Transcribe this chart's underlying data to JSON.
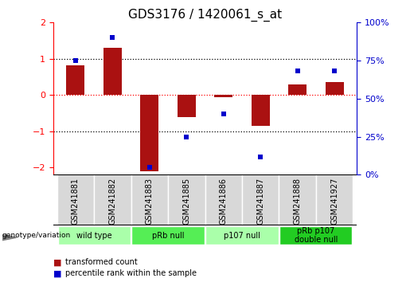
{
  "title": "GDS3176 / 1420061_s_at",
  "samples": [
    "GSM241881",
    "GSM241882",
    "GSM241883",
    "GSM241885",
    "GSM241886",
    "GSM241887",
    "GSM241888",
    "GSM241927"
  ],
  "red_bars": [
    0.82,
    1.3,
    -2.1,
    -0.6,
    -0.05,
    -0.85,
    0.3,
    0.35
  ],
  "blue_dots": [
    75,
    90,
    5,
    25,
    40,
    12,
    68,
    68
  ],
  "groups": [
    {
      "label": "wild type",
      "span": [
        0,
        2
      ],
      "color": "#aaffaa"
    },
    {
      "label": "pRb null",
      "span": [
        2,
        4
      ],
      "color": "#55ee55"
    },
    {
      "label": "p107 null",
      "span": [
        4,
        6
      ],
      "color": "#aaffaa"
    },
    {
      "label": "pRb p107\ndouble null",
      "span": [
        6,
        8
      ],
      "color": "#22cc22"
    }
  ],
  "ylim_left": [
    -2.2,
    2.0
  ],
  "ylim_right": [
    0,
    100
  ],
  "yticks_left": [
    -2,
    -1,
    0,
    1,
    2
  ],
  "yticks_right": [
    0,
    25,
    50,
    75,
    100
  ],
  "ytick_labels_right": [
    "0%",
    "25%",
    "50%",
    "75%",
    "100%"
  ],
  "bar_color": "#aa1111",
  "dot_color": "#0000cc",
  "title_fontsize": 11,
  "tick_fontsize": 8,
  "sample_fontsize": 7
}
